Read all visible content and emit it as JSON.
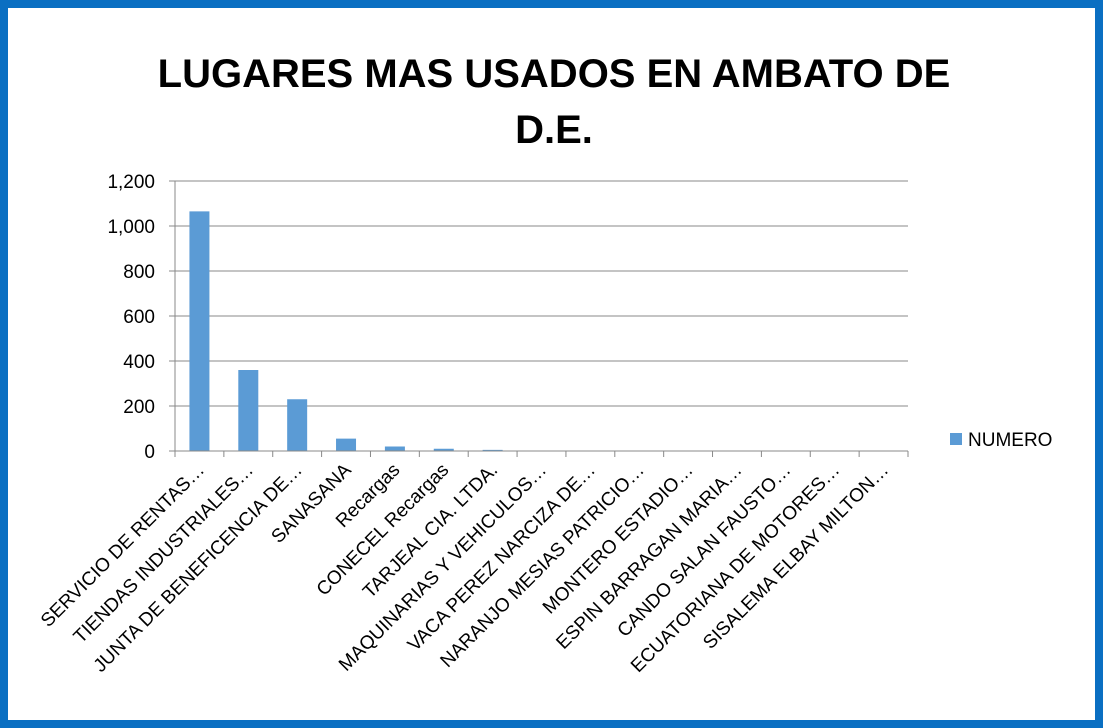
{
  "chart_data": {
    "type": "bar",
    "title": "LUGARES MAS USADOS EN AMBATO DE D.E.",
    "categories": [
      "SERVICIO DE RENTAS…",
      "TIENDAS INDUSTRIALES…",
      "JUNTA DE BENEFICENCIA DE…",
      "SANASANA",
      "Recargas",
      "CONECEL Recargas",
      "TARJEAL CIA. LTDA.",
      "MAQUINARIAS Y VEHICULOS…",
      "VACA PEREZ NARCIZA DE…",
      "NARANJO MESIAS PATRICIO…",
      "MONTERO ESTADIO…",
      "ESPIN BARRAGAN MARIA…",
      "CANDO SALAN FAUSTO…",
      "ECUATORIANA DE MOTORES…",
      "SISALEMA ELBAY MILTON…"
    ],
    "series": [
      {
        "name": "NUMERO",
        "color": "#5b9bd5",
        "values": [
          1065,
          360,
          230,
          55,
          20,
          10,
          5,
          2,
          2,
          1,
          1,
          1,
          1,
          1,
          1
        ]
      }
    ],
    "ylim": [
      0,
      1200
    ],
    "yticks": [
      0,
      200,
      400,
      600,
      800,
      {
        "value": 1000,
        "label": "1,000"
      },
      {
        "value": 1200,
        "label": "1,200"
      }
    ],
    "grid": true,
    "legend": "right"
  }
}
